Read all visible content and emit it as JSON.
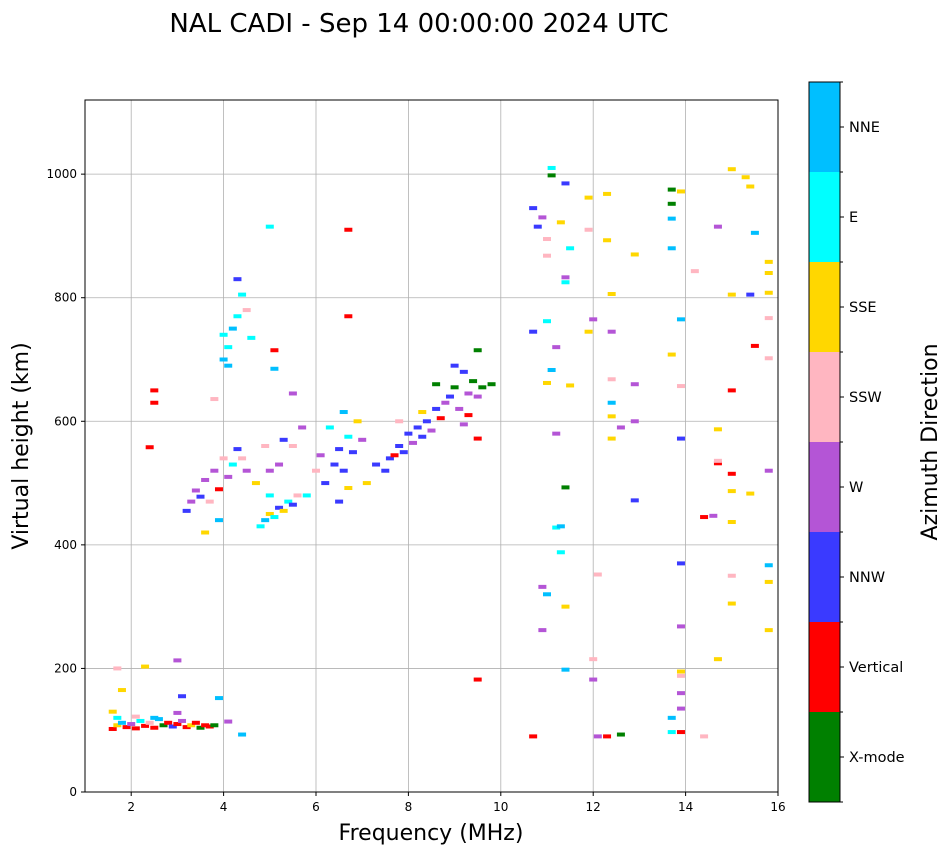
{
  "chart_data": {
    "type": "scatter",
    "title": "NAL CADI - Sep 14 00:00:00 2024 UTC",
    "xlabel": "Frequency (MHz)",
    "ylabel": "Virtual height (km)",
    "xlim": [
      1,
      16
    ],
    "ylim": [
      0,
      1120
    ],
    "x_ticks": [
      2,
      4,
      6,
      8,
      10,
      12,
      14,
      16
    ],
    "y_ticks": [
      0,
      200,
      400,
      600,
      800,
      1000
    ],
    "grid": true,
    "colorbar": {
      "title": "Azimuth Direction",
      "categories": [
        {
          "name": "X-mode",
          "color": "#008000"
        },
        {
          "name": "Vertical",
          "color": "#ff0000"
        },
        {
          "name": "NNW",
          "color": "#3a3aff"
        },
        {
          "name": "W",
          "color": "#b455d6"
        },
        {
          "name": "SSW",
          "color": "#ffb6c1"
        },
        {
          "name": "SSE",
          "color": "#ffd700"
        },
        {
          "name": "E",
          "color": "#00ffff"
        },
        {
          "name": "NNE",
          "color": "#00bfff"
        }
      ]
    },
    "points": [
      {
        "f": 1.6,
        "h": 102,
        "dir": "Vertical"
      },
      {
        "f": 1.7,
        "h": 108,
        "dir": "SSE"
      },
      {
        "f": 1.8,
        "h": 112,
        "dir": "NNE"
      },
      {
        "f": 1.9,
        "h": 105,
        "dir": "Vertical"
      },
      {
        "f": 2.0,
        "h": 110,
        "dir": "W"
      },
      {
        "f": 2.1,
        "h": 103,
        "dir": "Vertical"
      },
      {
        "f": 2.2,
        "h": 115,
        "dir": "E"
      },
      {
        "f": 2.3,
        "h": 107,
        "dir": "Vertical"
      },
      {
        "f": 2.4,
        "h": 112,
        "dir": "SSW"
      },
      {
        "f": 2.5,
        "h": 104,
        "dir": "Vertical"
      },
      {
        "f": 2.6,
        "h": 118,
        "dir": "NNE"
      },
      {
        "f": 2.7,
        "h": 108,
        "dir": "X-mode"
      },
      {
        "f": 2.8,
        "h": 112,
        "dir": "Vertical"
      },
      {
        "f": 2.9,
        "h": 106,
        "dir": "NNW"
      },
      {
        "f": 3.0,
        "h": 110,
        "dir": "Vertical"
      },
      {
        "f": 3.1,
        "h": 115,
        "dir": "W"
      },
      {
        "f": 3.2,
        "h": 105,
        "dir": "Vertical"
      },
      {
        "f": 3.3,
        "h": 108,
        "dir": "SSE"
      },
      {
        "f": 3.4,
        "h": 112,
        "dir": "Vertical"
      },
      {
        "f": 3.5,
        "h": 104,
        "dir": "X-mode"
      },
      {
        "f": 3.6,
        "h": 108,
        "dir": "Vertical"
      },
      {
        "f": 3.7,
        "h": 106,
        "dir": "Vertical"
      },
      {
        "f": 3.8,
        "h": 108,
        "dir": "X-mode"
      },
      {
        "f": 1.7,
        "h": 120,
        "dir": "E"
      },
      {
        "f": 2.1,
        "h": 122,
        "dir": "SSW"
      },
      {
        "f": 2.5,
        "h": 120,
        "dir": "NNE"
      },
      {
        "f": 3.0,
        "h": 128,
        "dir": "W"
      },
      {
        "f": 1.6,
        "h": 130,
        "dir": "SSE"
      },
      {
        "f": 1.8,
        "h": 165,
        "dir": "SSE"
      },
      {
        "f": 1.7,
        "h": 200,
        "dir": "SSW"
      },
      {
        "f": 2.3,
        "h": 203,
        "dir": "SSE"
      },
      {
        "f": 3.0,
        "h": 213,
        "dir": "W"
      },
      {
        "f": 3.1,
        "h": 155,
        "dir": "NNW"
      },
      {
        "f": 3.9,
        "h": 152,
        "dir": "NNE"
      },
      {
        "f": 4.4,
        "h": 93,
        "dir": "NNE"
      },
      {
        "f": 4.1,
        "h": 114,
        "dir": "W"
      },
      {
        "f": 2.5,
        "h": 650,
        "dir": "Vertical"
      },
      {
        "f": 2.5,
        "h": 630,
        "dir": "Vertical"
      },
      {
        "f": 2.4,
        "h": 558,
        "dir": "Vertical"
      },
      {
        "f": 3.2,
        "h": 455,
        "dir": "NNW"
      },
      {
        "f": 3.3,
        "h": 470,
        "dir": "W"
      },
      {
        "f": 3.4,
        "h": 488,
        "dir": "W"
      },
      {
        "f": 3.5,
        "h": 478,
        "dir": "NNW"
      },
      {
        "f": 3.6,
        "h": 505,
        "dir": "W"
      },
      {
        "f": 3.7,
        "h": 470,
        "dir": "SSW"
      },
      {
        "f": 3.8,
        "h": 520,
        "dir": "W"
      },
      {
        "f": 3.9,
        "h": 490,
        "dir": "Vertical"
      },
      {
        "f": 4.0,
        "h": 540,
        "dir": "SSW"
      },
      {
        "f": 4.1,
        "h": 510,
        "dir": "W"
      },
      {
        "f": 4.2,
        "h": 530,
        "dir": "E"
      },
      {
        "f": 4.3,
        "h": 555,
        "dir": "NNW"
      },
      {
        "f": 4.4,
        "h": 540,
        "dir": "SSW"
      },
      {
        "f": 4.5,
        "h": 520,
        "dir": "W"
      },
      {
        "f": 3.6,
        "h": 420,
        "dir": "SSE"
      },
      {
        "f": 3.9,
        "h": 440,
        "dir": "NNE"
      },
      {
        "f": 4.0,
        "h": 700,
        "dir": "NNE"
      },
      {
        "f": 4.1,
        "h": 720,
        "dir": "E"
      },
      {
        "f": 4.2,
        "h": 750,
        "dir": "NNE"
      },
      {
        "f": 4.0,
        "h": 740,
        "dir": "E"
      },
      {
        "f": 4.3,
        "h": 770,
        "dir": "E"
      },
      {
        "f": 4.1,
        "h": 690,
        "dir": "NNE"
      },
      {
        "f": 4.4,
        "h": 805,
        "dir": "E"
      },
      {
        "f": 4.3,
        "h": 830,
        "dir": "NNW"
      },
      {
        "f": 4.6,
        "h": 735,
        "dir": "E"
      },
      {
        "f": 4.5,
        "h": 780,
        "dir": "SSW"
      },
      {
        "f": 3.8,
        "h": 636,
        "dir": "SSW"
      },
      {
        "f": 4.8,
        "h": 430,
        "dir": "E"
      },
      {
        "f": 4.9,
        "h": 440,
        "dir": "NNE"
      },
      {
        "f": 5.0,
        "h": 450,
        "dir": "SSE"
      },
      {
        "f": 5.1,
        "h": 445,
        "dir": "E"
      },
      {
        "f": 5.2,
        "h": 460,
        "dir": "NNW"
      },
      {
        "f": 5.3,
        "h": 455,
        "dir": "SSE"
      },
      {
        "f": 5.4,
        "h": 470,
        "dir": "E"
      },
      {
        "f": 5.5,
        "h": 465,
        "dir": "NNW"
      },
      {
        "f": 5.6,
        "h": 480,
        "dir": "SSW"
      },
      {
        "f": 5.0,
        "h": 480,
        "dir": "E"
      },
      {
        "f": 4.7,
        "h": 500,
        "dir": "SSE"
      },
      {
        "f": 5.2,
        "h": 530,
        "dir": "W"
      },
      {
        "f": 5.5,
        "h": 560,
        "dir": "SSW"
      },
      {
        "f": 5.7,
        "h": 590,
        "dir": "W"
      },
      {
        "f": 5.3,
        "h": 570,
        "dir": "NNW"
      },
      {
        "f": 5.0,
        "h": 520,
        "dir": "W"
      },
      {
        "f": 4.9,
        "h": 560,
        "dir": "SSW"
      },
      {
        "f": 5.1,
        "h": 715,
        "dir": "Vertical"
      },
      {
        "f": 5.1,
        "h": 685,
        "dir": "NNE"
      },
      {
        "f": 5.5,
        "h": 645,
        "dir": "W"
      },
      {
        "f": 5.0,
        "h": 915,
        "dir": "E"
      },
      {
        "f": 5.8,
        "h": 480,
        "dir": "E"
      },
      {
        "f": 6.0,
        "h": 520,
        "dir": "SSW"
      },
      {
        "f": 6.1,
        "h": 545,
        "dir": "W"
      },
      {
        "f": 6.2,
        "h": 500,
        "dir": "NNW"
      },
      {
        "f": 6.4,
        "h": 530,
        "dir": "NNW"
      },
      {
        "f": 6.5,
        "h": 555,
        "dir": "NNW"
      },
      {
        "f": 6.6,
        "h": 520,
        "dir": "NNW"
      },
      {
        "f": 6.7,
        "h": 575,
        "dir": "E"
      },
      {
        "f": 6.8,
        "h": 550,
        "dir": "NNW"
      },
      {
        "f": 6.9,
        "h": 600,
        "dir": "SSE"
      },
      {
        "f": 7.0,
        "h": 570,
        "dir": "W"
      },
      {
        "f": 6.3,
        "h": 590,
        "dir": "E"
      },
      {
        "f": 6.6,
        "h": 615,
        "dir": "NNE"
      },
      {
        "f": 6.5,
        "h": 470,
        "dir": "NNW"
      },
      {
        "f": 6.7,
        "h": 492,
        "dir": "SSE"
      },
      {
        "f": 6.7,
        "h": 910,
        "dir": "Vertical"
      },
      {
        "f": 6.7,
        "h": 770,
        "dir": "Vertical"
      },
      {
        "f": 7.1,
        "h": 500,
        "dir": "SSE"
      },
      {
        "f": 7.3,
        "h": 530,
        "dir": "NNW"
      },
      {
        "f": 7.5,
        "h": 520,
        "dir": "NNW"
      },
      {
        "f": 7.6,
        "h": 540,
        "dir": "NNW"
      },
      {
        "f": 7.7,
        "h": 545,
        "dir": "Vertical"
      },
      {
        "f": 7.8,
        "h": 560,
        "dir": "NNW"
      },
      {
        "f": 7.9,
        "h": 550,
        "dir": "NNW"
      },
      {
        "f": 8.0,
        "h": 580,
        "dir": "NNW"
      },
      {
        "f": 8.1,
        "h": 565,
        "dir": "W"
      },
      {
        "f": 8.2,
        "h": 590,
        "dir": "NNW"
      },
      {
        "f": 8.3,
        "h": 575,
        "dir": "NNW"
      },
      {
        "f": 8.4,
        "h": 600,
        "dir": "NNW"
      },
      {
        "f": 8.5,
        "h": 585,
        "dir": "W"
      },
      {
        "f": 8.6,
        "h": 620,
        "dir": "NNW"
      },
      {
        "f": 8.7,
        "h": 605,
        "dir": "Vertical"
      },
      {
        "f": 8.8,
        "h": 630,
        "dir": "W"
      },
      {
        "f": 8.9,
        "h": 640,
        "dir": "NNW"
      },
      {
        "f": 9.0,
        "h": 655,
        "dir": "X-mode"
      },
      {
        "f": 9.1,
        "h": 620,
        "dir": "W"
      },
      {
        "f": 9.2,
        "h": 680,
        "dir": "NNW"
      },
      {
        "f": 9.3,
        "h": 645,
        "dir": "W"
      },
      {
        "f": 9.4,
        "h": 665,
        "dir": "X-mode"
      },
      {
        "f": 9.5,
        "h": 640,
        "dir": "W"
      },
      {
        "f": 9.6,
        "h": 655,
        "dir": "X-mode"
      },
      {
        "f": 9.8,
        "h": 660,
        "dir": "X-mode"
      },
      {
        "f": 8.6,
        "h": 660,
        "dir": "X-mode"
      },
      {
        "f": 8.3,
        "h": 615,
        "dir": "SSE"
      },
      {
        "f": 7.8,
        "h": 600,
        "dir": "SSW"
      },
      {
        "f": 9.0,
        "h": 690,
        "dir": "NNW"
      },
      {
        "f": 9.5,
        "h": 715,
        "dir": "X-mode"
      },
      {
        "f": 9.5,
        "h": 572,
        "dir": "Vertical"
      },
      {
        "f": 9.2,
        "h": 595,
        "dir": "W"
      },
      {
        "f": 9.3,
        "h": 610,
        "dir": "Vertical"
      },
      {
        "f": 9.5,
        "h": 182,
        "dir": "Vertical"
      },
      {
        "f": 10.7,
        "h": 945,
        "dir": "NNW"
      },
      {
        "f": 10.8,
        "h": 915,
        "dir": "NNW"
      },
      {
        "f": 10.9,
        "h": 930,
        "dir": "W"
      },
      {
        "f": 11.0,
        "h": 895,
        "dir": "SSW"
      },
      {
        "f": 11.0,
        "h": 868,
        "dir": "SSW"
      },
      {
        "f": 11.1,
        "h": 1010,
        "dir": "E"
      },
      {
        "f": 11.1,
        "h": 998,
        "dir": "X-mode"
      },
      {
        "f": 11.4,
        "h": 985,
        "dir": "NNW"
      },
      {
        "f": 11.3,
        "h": 922,
        "dir": "SSE"
      },
      {
        "f": 11.5,
        "h": 880,
        "dir": "E"
      },
      {
        "f": 11.4,
        "h": 833,
        "dir": "W"
      },
      {
        "f": 11.4,
        "h": 825,
        "dir": "E"
      },
      {
        "f": 11.0,
        "h": 762,
        "dir": "E"
      },
      {
        "f": 10.7,
        "h": 745,
        "dir": "NNW"
      },
      {
        "f": 11.2,
        "h": 720,
        "dir": "W"
      },
      {
        "f": 11.1,
        "h": 683,
        "dir": "NNE"
      },
      {
        "f": 11.0,
        "h": 662,
        "dir": "SSE"
      },
      {
        "f": 11.5,
        "h": 658,
        "dir": "SSE"
      },
      {
        "f": 11.2,
        "h": 580,
        "dir": "W"
      },
      {
        "f": 11.4,
        "h": 493,
        "dir": "X-mode"
      },
      {
        "f": 11.2,
        "h": 428,
        "dir": "E"
      },
      {
        "f": 11.3,
        "h": 430,
        "dir": "NNE"
      },
      {
        "f": 11.3,
        "h": 388,
        "dir": "E"
      },
      {
        "f": 10.9,
        "h": 332,
        "dir": "W"
      },
      {
        "f": 11.0,
        "h": 320,
        "dir": "NNE"
      },
      {
        "f": 11.4,
        "h": 300,
        "dir": "SSE"
      },
      {
        "f": 10.9,
        "h": 262,
        "dir": "W"
      },
      {
        "f": 11.4,
        "h": 198,
        "dir": "NNE"
      },
      {
        "f": 10.7,
        "h": 90,
        "dir": "Vertical"
      },
      {
        "f": 11.9,
        "h": 962,
        "dir": "SSE"
      },
      {
        "f": 12.3,
        "h": 968,
        "dir": "SSE"
      },
      {
        "f": 11.9,
        "h": 910,
        "dir": "SSW"
      },
      {
        "f": 12.3,
        "h": 893,
        "dir": "SSE"
      },
      {
        "f": 12.4,
        "h": 806,
        "dir": "SSE"
      },
      {
        "f": 12.0,
        "h": 765,
        "dir": "W"
      },
      {
        "f": 11.9,
        "h": 745,
        "dir": "SSE"
      },
      {
        "f": 12.4,
        "h": 745,
        "dir": "W"
      },
      {
        "f": 12.4,
        "h": 668,
        "dir": "SSW"
      },
      {
        "f": 12.4,
        "h": 630,
        "dir": "NNE"
      },
      {
        "f": 12.4,
        "h": 608,
        "dir": "SSE"
      },
      {
        "f": 12.6,
        "h": 590,
        "dir": "W"
      },
      {
        "f": 12.9,
        "h": 600,
        "dir": "W"
      },
      {
        "f": 12.4,
        "h": 572,
        "dir": "SSE"
      },
      {
        "f": 12.9,
        "h": 660,
        "dir": "W"
      },
      {
        "f": 12.9,
        "h": 870,
        "dir": "SSE"
      },
      {
        "f": 12.9,
        "h": 472,
        "dir": "NNW"
      },
      {
        "f": 12.1,
        "h": 352,
        "dir": "SSW"
      },
      {
        "f": 12.0,
        "h": 215,
        "dir": "SSW"
      },
      {
        "f": 12.0,
        "h": 182,
        "dir": "W"
      },
      {
        "f": 12.3,
        "h": 90,
        "dir": "Vertical"
      },
      {
        "f": 12.6,
        "h": 93,
        "dir": "X-mode"
      },
      {
        "f": 12.1,
        "h": 90,
        "dir": "W"
      },
      {
        "f": 13.7,
        "h": 975,
        "dir": "X-mode"
      },
      {
        "f": 13.9,
        "h": 972,
        "dir": "SSE"
      },
      {
        "f": 13.7,
        "h": 952,
        "dir": "X-mode"
      },
      {
        "f": 13.7,
        "h": 928,
        "dir": "NNE"
      },
      {
        "f": 13.7,
        "h": 880,
        "dir": "NNE"
      },
      {
        "f": 14.2,
        "h": 843,
        "dir": "SSW"
      },
      {
        "f": 13.9,
        "h": 765,
        "dir": "NNE"
      },
      {
        "f": 13.7,
        "h": 708,
        "dir": "SSE"
      },
      {
        "f": 13.9,
        "h": 657,
        "dir": "SSW"
      },
      {
        "f": 13.9,
        "h": 572,
        "dir": "NNW"
      },
      {
        "f": 13.9,
        "h": 370,
        "dir": "NNW"
      },
      {
        "f": 13.9,
        "h": 268,
        "dir": "W"
      },
      {
        "f": 13.9,
        "h": 195,
        "dir": "SSE"
      },
      {
        "f": 13.9,
        "h": 188,
        "dir": "SSW"
      },
      {
        "f": 13.9,
        "h": 160,
        "dir": "W"
      },
      {
        "f": 13.9,
        "h": 135,
        "dir": "W"
      },
      {
        "f": 13.7,
        "h": 120,
        "dir": "NNE"
      },
      {
        "f": 13.7,
        "h": 97,
        "dir": "E"
      },
      {
        "f": 13.9,
        "h": 97,
        "dir": "Vertical"
      },
      {
        "f": 14.4,
        "h": 90,
        "dir": "SSW"
      },
      {
        "f": 14.4,
        "h": 445,
        "dir": "Vertical"
      },
      {
        "f": 14.6,
        "h": 447,
        "dir": "W"
      },
      {
        "f": 14.7,
        "h": 532,
        "dir": "Vertical"
      },
      {
        "f": 14.7,
        "h": 536,
        "dir": "SSW"
      },
      {
        "f": 14.7,
        "h": 587,
        "dir": "SSE"
      },
      {
        "f": 14.7,
        "h": 215,
        "dir": "SSE"
      },
      {
        "f": 14.7,
        "h": 915,
        "dir": "W"
      },
      {
        "f": 15.0,
        "h": 1008,
        "dir": "SSE"
      },
      {
        "f": 15.3,
        "h": 995,
        "dir": "SSE"
      },
      {
        "f": 15.4,
        "h": 980,
        "dir": "SSE"
      },
      {
        "f": 15.5,
        "h": 905,
        "dir": "NNE"
      },
      {
        "f": 15.8,
        "h": 858,
        "dir": "SSE"
      },
      {
        "f": 15.8,
        "h": 840,
        "dir": "SSE"
      },
      {
        "f": 15.0,
        "h": 805,
        "dir": "SSE"
      },
      {
        "f": 15.4,
        "h": 805,
        "dir": "NNW"
      },
      {
        "f": 15.8,
        "h": 808,
        "dir": "SSE"
      },
      {
        "f": 15.8,
        "h": 767,
        "dir": "SSW"
      },
      {
        "f": 15.5,
        "h": 722,
        "dir": "Vertical"
      },
      {
        "f": 15.8,
        "h": 702,
        "dir": "SSW"
      },
      {
        "f": 15.0,
        "h": 650,
        "dir": "Vertical"
      },
      {
        "f": 15.8,
        "h": 520,
        "dir": "W"
      },
      {
        "f": 15.0,
        "h": 515,
        "dir": "Vertical"
      },
      {
        "f": 15.0,
        "h": 487,
        "dir": "SSE"
      },
      {
        "f": 15.4,
        "h": 483,
        "dir": "SSE"
      },
      {
        "f": 15.0,
        "h": 437,
        "dir": "SSE"
      },
      {
        "f": 15.8,
        "h": 367,
        "dir": "NNE"
      },
      {
        "f": 15.0,
        "h": 350,
        "dir": "SSW"
      },
      {
        "f": 15.8,
        "h": 340,
        "dir": "SSE"
      },
      {
        "f": 15.0,
        "h": 305,
        "dir": "SSE"
      },
      {
        "f": 15.8,
        "h": 262,
        "dir": "SSE"
      }
    ]
  }
}
